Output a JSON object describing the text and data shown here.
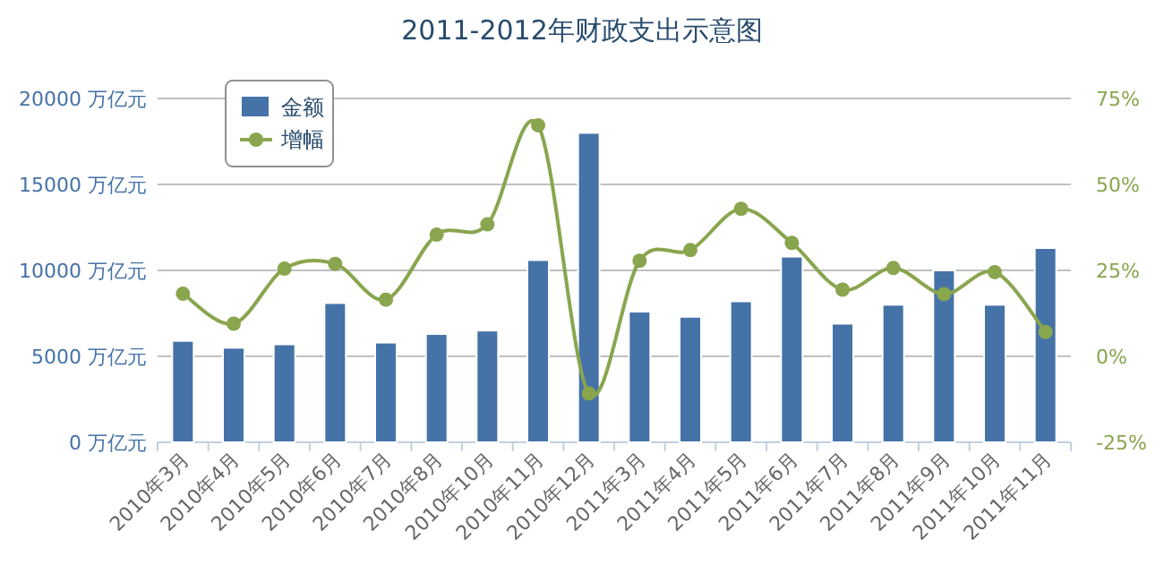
{
  "chart_data": {
    "type": "bar",
    "title": "2011-2012年财政支出示意图",
    "categories": [
      "2010年3月",
      "2010年4月",
      "2010年5月",
      "2010年6月",
      "2010年7月",
      "2010年8月",
      "2010年10月",
      "2010年11月",
      "2010年12月",
      "2011年3月",
      "2011年4月",
      "2011年5月",
      "2011年6月",
      "2011年7月",
      "2011年8月",
      "2011年9月",
      "2011年10月",
      "2011年11月"
    ],
    "series": [
      {
        "name": "金额",
        "color": "#4572a7",
        "values": [
          5900,
          5500,
          5700,
          8100,
          5800,
          6300,
          6500,
          10600,
          18000,
          7600,
          7300,
          8200,
          10800,
          6900,
          8000,
          10000,
          8000,
          11300
        ]
      },
      {
        "name": "增幅",
        "type": "line",
        "axis": "y2",
        "color": "#89a54e",
        "marker": "circle",
        "values": [
          18.2,
          9.5,
          25.5,
          26.9,
          16.5,
          35.4,
          38.4,
          67.2,
          -10.8,
          27.8,
          30.9,
          42.9,
          33.0,
          19.4,
          25.7,
          18.1,
          24.5,
          7.1
        ]
      }
    ],
    "ylim": [
      0,
      20000
    ],
    "yticks": [
      {
        "value": 0,
        "label": "0 万亿元"
      },
      {
        "value": 5000,
        "label": "5000 万亿元"
      },
      {
        "value": 10000,
        "label": "10000 万亿元"
      },
      {
        "value": 15000,
        "label": "15000 万亿元"
      },
      {
        "value": 20000,
        "label": "20000 万亿元"
      }
    ],
    "y2lim": [
      -25,
      75
    ],
    "y2ticks": [
      {
        "value": -25,
        "label": "-25%"
      },
      {
        "value": 0,
        "label": "0%"
      },
      {
        "value": 25,
        "label": "25%"
      },
      {
        "value": 50,
        "label": "50%"
      },
      {
        "value": 75,
        "label": "75%"
      }
    ],
    "grid": "y",
    "legend": "top left"
  }
}
